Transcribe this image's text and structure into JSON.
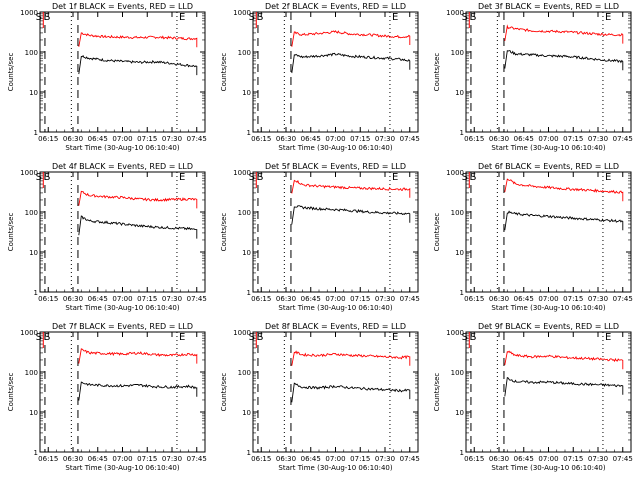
{
  "figure": {
    "y_label": "Counts/sec",
    "x_label": "Start Time (30-Aug-10 06:10:40)",
    "x_ticks": [
      "06:15",
      "06:30",
      "06:45",
      "07:00",
      "07:15",
      "07:30",
      "07:45"
    ],
    "y_ticks": [
      "1",
      "10",
      "100",
      "1000"
    ],
    "marker_labels": {
      "start": "S",
      "end": "E"
    },
    "colors": {
      "events": "#000000",
      "lld": "#ff0000"
    }
  },
  "chart_data": [
    {
      "type": "line",
      "title": "Det 1f BLACK = Events, RED = LLD",
      "xlabel": "Start Time (30-Aug-10 06:10:40)",
      "ylabel": "Counts/sec",
      "xlim": [
        "06:10",
        "07:50"
      ],
      "ylim": [
        1,
        1000
      ],
      "yscale": "log",
      "dashed_markers": [
        "06:13",
        "06:33"
      ],
      "dotted_markers": [
        "06:29",
        "07:33"
      ],
      "x": [
        "06:35",
        "06:40",
        "06:50",
        "07:00",
        "07:10",
        "07:20",
        "07:30",
        "07:40",
        "07:45"
      ],
      "series": [
        {
          "name": "LLD",
          "color": "#ff0000",
          "values": [
            300,
            260,
            240,
            235,
            230,
            235,
            225,
            215,
            220
          ]
        },
        {
          "name": "Events",
          "color": "#000000",
          "values": [
            80,
            70,
            62,
            58,
            55,
            57,
            52,
            46,
            44
          ]
        }
      ]
    },
    {
      "type": "line",
      "title": "Det 2f BLACK = Events, RED = LLD",
      "xlabel": "Start Time (30-Aug-10 06:10:40)",
      "ylabel": "Counts/sec",
      "xlim": [
        "06:10",
        "07:50"
      ],
      "ylim": [
        1,
        1000
      ],
      "yscale": "log",
      "dashed_markers": [
        "06:13",
        "06:33"
      ],
      "dotted_markers": [
        "06:29",
        "07:33"
      ],
      "x": [
        "06:35",
        "06:40",
        "06:50",
        "07:00",
        "07:10",
        "07:20",
        "07:30",
        "07:40",
        "07:45"
      ],
      "series": [
        {
          "name": "LLD",
          "color": "#ff0000",
          "values": [
            300,
            270,
            290,
            320,
            280,
            270,
            250,
            240,
            250
          ]
        },
        {
          "name": "Events",
          "color": "#000000",
          "values": [
            85,
            75,
            80,
            88,
            78,
            74,
            70,
            65,
            60
          ]
        }
      ]
    },
    {
      "type": "line",
      "title": "Det 3f BLACK = Events, RED = LLD",
      "xlabel": "Start Time (30-Aug-10 06:10:40)",
      "ylabel": "Counts/sec",
      "xlim": [
        "06:10",
        "07:50"
      ],
      "ylim": [
        1,
        1000
      ],
      "yscale": "log",
      "dashed_markers": [
        "06:13",
        "06:33"
      ],
      "dotted_markers": [
        "06:29",
        "07:33"
      ],
      "x": [
        "06:35",
        "06:40",
        "06:50",
        "07:00",
        "07:10",
        "07:20",
        "07:30",
        "07:40",
        "07:45"
      ],
      "series": [
        {
          "name": "LLD",
          "color": "#ff0000",
          "values": [
            420,
            380,
            340,
            330,
            320,
            300,
            280,
            270,
            270
          ]
        },
        {
          "name": "Events",
          "color": "#000000",
          "values": [
            110,
            90,
            85,
            80,
            78,
            72,
            65,
            60,
            58
          ]
        }
      ]
    },
    {
      "type": "line",
      "title": "Det 4f BLACK = Events, RED = LLD",
      "xlabel": "Start Time (30-Aug-10 06:10:40)",
      "ylabel": "Counts/sec",
      "xlim": [
        "06:10",
        "07:50"
      ],
      "ylim": [
        1,
        1000
      ],
      "yscale": "log",
      "dashed_markers": [
        "06:13",
        "06:33"
      ],
      "dotted_markers": [
        "06:29",
        "07:33"
      ],
      "x": [
        "06:35",
        "06:40",
        "06:50",
        "07:00",
        "07:10",
        "07:20",
        "07:30",
        "07:40",
        "07:45"
      ],
      "series": [
        {
          "name": "LLD",
          "color": "#ff0000",
          "values": [
            320,
            260,
            240,
            230,
            210,
            200,
            205,
            210,
            205
          ]
        },
        {
          "name": "Events",
          "color": "#000000",
          "values": [
            75,
            60,
            55,
            50,
            45,
            42,
            40,
            38,
            36
          ]
        }
      ]
    },
    {
      "type": "line",
      "title": "Det 5f BLACK = Events, RED = LLD",
      "xlabel": "Start Time (30-Aug-10 06:10:40)",
      "ylabel": "Counts/sec",
      "xlim": [
        "06:10",
        "07:50"
      ],
      "ylim": [
        1,
        1000
      ],
      "yscale": "log",
      "dashed_markers": [
        "06:13",
        "06:33"
      ],
      "dotted_markers": [
        "06:29",
        "07:33"
      ],
      "x": [
        "06:35",
        "06:40",
        "06:50",
        "07:00",
        "07:10",
        "07:20",
        "07:30",
        "07:40",
        "07:45"
      ],
      "series": [
        {
          "name": "LLD",
          "color": "#ff0000",
          "values": [
            650,
            480,
            440,
            420,
            400,
            390,
            380,
            370,
            380
          ]
        },
        {
          "name": "Events",
          "color": "#000000",
          "values": [
            140,
            130,
            120,
            115,
            108,
            100,
            95,
            92,
            90
          ]
        }
      ]
    },
    {
      "type": "line",
      "title": "Det 6f BLACK = Events, RED = LLD",
      "xlabel": "Start Time (30-Aug-10 06:10:40)",
      "ylabel": "Counts/sec",
      "xlim": [
        "06:10",
        "07:50"
      ],
      "ylim": [
        1,
        1000
      ],
      "yscale": "log",
      "dashed_markers": [
        "06:13",
        "06:33"
      ],
      "dotted_markers": [
        "06:29",
        "07:33"
      ],
      "x": [
        "06:35",
        "06:40",
        "06:50",
        "07:00",
        "07:10",
        "07:20",
        "07:30",
        "07:40",
        "07:45"
      ],
      "series": [
        {
          "name": "LLD",
          "color": "#ff0000",
          "values": [
            700,
            500,
            440,
            410,
            380,
            360,
            340,
            320,
            310
          ]
        },
        {
          "name": "Events",
          "color": "#000000",
          "values": [
            100,
            90,
            82,
            78,
            72,
            68,
            64,
            60,
            58
          ]
        }
      ]
    },
    {
      "type": "line",
      "title": "Det 7f BLACK = Events, RED = LLD",
      "xlabel": "Start Time (30-Aug-10 06:10:40)",
      "ylabel": "Counts/sec",
      "xlim": [
        "06:10",
        "07:50"
      ],
      "ylim": [
        1,
        1000
      ],
      "yscale": "log",
      "dashed_markers": [
        "06:13",
        "06:33"
      ],
      "dotted_markers": [
        "06:29",
        "07:33"
      ],
      "x": [
        "06:35",
        "06:40",
        "06:50",
        "07:00",
        "07:10",
        "07:20",
        "07:30",
        "07:40",
        "07:45"
      ],
      "series": [
        {
          "name": "LLD",
          "color": "#ff0000",
          "values": [
            360,
            300,
            290,
            280,
            300,
            270,
            260,
            280,
            270
          ]
        },
        {
          "name": "Events",
          "color": "#000000",
          "values": [
            55,
            48,
            46,
            45,
            47,
            43,
            42,
            44,
            40
          ]
        }
      ]
    },
    {
      "type": "line",
      "title": "Det 8f BLACK = Events, RED = LLD",
      "xlabel": "Start Time (30-Aug-10 06:10:40)",
      "ylabel": "Counts/sec",
      "xlim": [
        "06:10",
        "07:50"
      ],
      "ylim": [
        1,
        1000
      ],
      "yscale": "log",
      "dashed_markers": [
        "06:13",
        "06:33"
      ],
      "dotted_markers": [
        "06:29",
        "07:33"
      ],
      "x": [
        "06:35",
        "06:40",
        "06:50",
        "07:00",
        "07:10",
        "07:20",
        "07:30",
        "07:40",
        "07:45"
      ],
      "series": [
        {
          "name": "LLD",
          "color": "#ff0000",
          "values": [
            320,
            270,
            260,
            280,
            260,
            250,
            240,
            230,
            240
          ]
        },
        {
          "name": "Events",
          "color": "#000000",
          "values": [
            50,
            42,
            40,
            44,
            40,
            38,
            36,
            34,
            35
          ]
        }
      ]
    },
    {
      "type": "line",
      "title": "Det 9f BLACK = Events, RED = LLD",
      "xlabel": "Start Time (30-Aug-10 06:10:40)",
      "ylabel": "Counts/sec",
      "xlim": [
        "06:10",
        "07:50"
      ],
      "ylim": [
        1,
        1000
      ],
      "yscale": "log",
      "dashed_markers": [
        "06:13",
        "06:33"
      ],
      "dotted_markers": [
        "06:29",
        "07:33"
      ],
      "x": [
        "06:35",
        "06:40",
        "06:50",
        "07:00",
        "07:10",
        "07:20",
        "07:30",
        "07:40",
        "07:45"
      ],
      "series": [
        {
          "name": "LLD",
          "color": "#ff0000",
          "values": [
            330,
            260,
            240,
            250,
            230,
            220,
            210,
            200,
            195
          ]
        },
        {
          "name": "Events",
          "color": "#000000",
          "values": [
            70,
            58,
            55,
            56,
            52,
            50,
            48,
            46,
            45
          ]
        }
      ]
    }
  ]
}
